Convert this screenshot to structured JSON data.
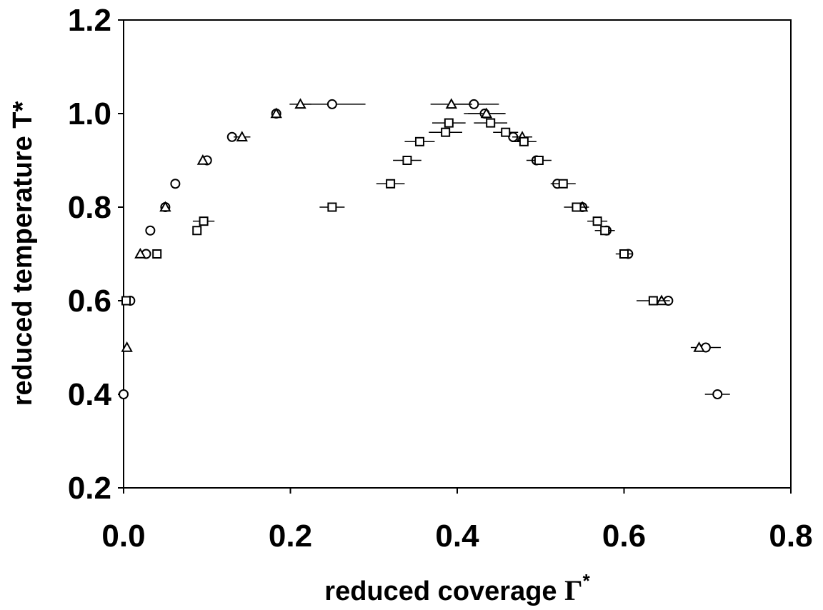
{
  "chart_data": {
    "type": "scatter",
    "title": "",
    "xlabel": "reduced coverage ",
    "xlabel_symbol": "Γ",
    "xlabel_sup": "*",
    "ylabel": "reduced temperature T*",
    "xlim": [
      0.0,
      0.8
    ],
    "ylim": [
      0.2,
      1.2
    ],
    "x_ticks": [
      "0.0",
      "0.2",
      "0.4",
      "0.6",
      "0.8"
    ],
    "y_ticks": [
      "0.2",
      "0.4",
      "0.6",
      "0.8",
      "1.0",
      "1.2"
    ],
    "grid": false,
    "legend": "none",
    "series": [
      {
        "marker": "circle",
        "points": [
          {
            "x": 0.0,
            "y": 0.4
          },
          {
            "x": 0.008,
            "y": 0.6
          },
          {
            "x": 0.027,
            "y": 0.7
          },
          {
            "x": 0.032,
            "y": 0.75
          },
          {
            "x": 0.05,
            "y": 0.8
          },
          {
            "x": 0.062,
            "y": 0.85
          },
          {
            "x": 0.1,
            "y": 0.9
          },
          {
            "x": 0.13,
            "y": 0.95
          },
          {
            "x": 0.183,
            "y": 1.0
          },
          {
            "x": 0.25,
            "y": 1.02,
            "xerr": 0.04
          },
          {
            "x": 0.42,
            "y": 1.02,
            "xerr": 0.03
          },
          {
            "x": 0.433,
            "y": 1.0,
            "xerr": 0.025
          },
          {
            "x": 0.467,
            "y": 0.95
          },
          {
            "x": 0.495,
            "y": 0.9
          },
          {
            "x": 0.52,
            "y": 0.85
          },
          {
            "x": 0.55,
            "y": 0.8
          },
          {
            "x": 0.579,
            "y": 0.75
          },
          {
            "x": 0.605,
            "y": 0.7
          },
          {
            "x": 0.653,
            "y": 0.6
          },
          {
            "x": 0.698,
            "y": 0.5,
            "xerr": 0.018
          },
          {
            "x": 0.712,
            "y": 0.4,
            "xerr": 0.015
          }
        ]
      },
      {
        "marker": "triangle",
        "points": [
          {
            "x": 0.004,
            "y": 0.5
          },
          {
            "x": 0.02,
            "y": 0.7
          },
          {
            "x": 0.05,
            "y": 0.8
          },
          {
            "x": 0.095,
            "y": 0.9
          },
          {
            "x": 0.142,
            "y": 0.95,
            "xerr": 0.01
          },
          {
            "x": 0.183,
            "y": 1.0
          },
          {
            "x": 0.212,
            "y": 1.02,
            "xerr": 0.013
          },
          {
            "x": 0.393,
            "y": 1.02,
            "xerr": 0.025
          },
          {
            "x": 0.435,
            "y": 1.0,
            "xerr": 0.022
          },
          {
            "x": 0.478,
            "y": 0.95,
            "xerr": 0.012
          },
          {
            "x": 0.55,
            "y": 0.8
          },
          {
            "x": 0.645,
            "y": 0.6
          },
          {
            "x": 0.69,
            "y": 0.5
          }
        ]
      },
      {
        "marker": "square",
        "points": [
          {
            "x": 0.003,
            "y": 0.6
          },
          {
            "x": 0.04,
            "y": 0.7
          },
          {
            "x": 0.088,
            "y": 0.75
          },
          {
            "x": 0.096,
            "y": 0.77,
            "xerr": 0.013
          },
          {
            "x": 0.25,
            "y": 0.8,
            "xerr": 0.015
          },
          {
            "x": 0.32,
            "y": 0.85,
            "xerr": 0.017
          },
          {
            "x": 0.34,
            "y": 0.9,
            "xerr": 0.017
          },
          {
            "x": 0.355,
            "y": 0.94,
            "xerr": 0.018
          },
          {
            "x": 0.386,
            "y": 0.96,
            "xerr": 0.02
          },
          {
            "x": 0.39,
            "y": 0.98,
            "xerr": 0.02
          },
          {
            "x": 0.44,
            "y": 0.98,
            "xerr": 0.02
          },
          {
            "x": 0.458,
            "y": 0.96,
            "xerr": 0.015
          },
          {
            "x": 0.48,
            "y": 0.94,
            "xerr": 0.015
          },
          {
            "x": 0.498,
            "y": 0.9,
            "xerr": 0.015
          },
          {
            "x": 0.527,
            "y": 0.85,
            "xerr": 0.015
          },
          {
            "x": 0.543,
            "y": 0.8,
            "xerr": 0.015
          },
          {
            "x": 0.568,
            "y": 0.77,
            "xerr": 0.012
          },
          {
            "x": 0.577,
            "y": 0.75,
            "xerr": 0.012
          },
          {
            "x": 0.6,
            "y": 0.7,
            "xerr": 0.01
          },
          {
            "x": 0.635,
            "y": 0.6,
            "xerr": 0.02
          }
        ]
      }
    ]
  }
}
